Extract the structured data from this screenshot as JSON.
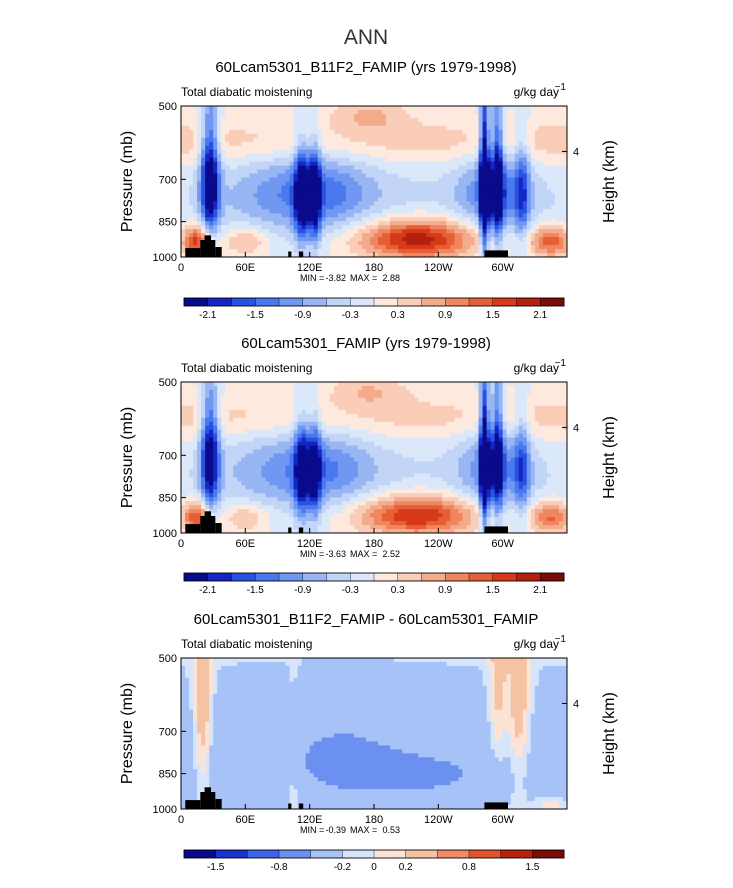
{
  "chart_data": {
    "type": "heatmap",
    "title": "ANN",
    "palette_full": [
      "#0a0b8c",
      "#1426c6",
      "#2a52e0",
      "#4a78ee",
      "#7097f1",
      "#98b6f4",
      "#c2d5f7",
      "#dbe8fa",
      "#fde9de",
      "#f9cdb8",
      "#f4ab8c",
      "#ef865f",
      "#e65f35",
      "#d63a1a",
      "#b3200f",
      "#7a0d06"
    ],
    "palette_diff": [
      "#0a0b8c",
      "#1a32cf",
      "#3b64e8",
      "#6b90f0",
      "#a7c2f6",
      "#d7e5fa",
      "#fbe4d6",
      "#f6c2a4",
      "#ef8c65",
      "#e2552c",
      "#b9200f",
      "#7a0d06"
    ],
    "panels": [
      {
        "title": "60Lcam5301_B11F2_FAMIP (yrs 1979-1998)",
        "left_label": "Total diabatic moistening",
        "units": "g/kg day",
        "units_exp": "−1",
        "ylabel": "Pressure (mb)",
        "y2label": "Height (km)",
        "x_ticks": [
          "0",
          "60E",
          "120E",
          "180",
          "120W",
          "60W"
        ],
        "y_ticks": [
          "500",
          "700",
          "850",
          "1000"
        ],
        "y2_ticks": [
          "4"
        ],
        "min_label": "MIN =",
        "min_value": "-3.82",
        "max_label": "MAX =",
        "max_value": "2.88",
        "colorbar_labels": [
          "-2.1",
          "-1.5",
          "-0.9",
          "-0.3",
          "0.3",
          "0.9",
          "1.5",
          "2.1"
        ],
        "scale": 1.0,
        "diff": false
      },
      {
        "title": "60Lcam5301_FAMIP (yrs 1979-1998)",
        "left_label": "Total diabatic moistening",
        "units": "g/kg day",
        "units_exp": "−1",
        "ylabel": "Pressure (mb)",
        "y2label": "Height (km)",
        "x_ticks": [
          "0",
          "60E",
          "120E",
          "180",
          "120W",
          "60W"
        ],
        "y_ticks": [
          "500",
          "700",
          "850",
          "1000"
        ],
        "y2_ticks": [
          "4"
        ],
        "min_label": "MIN =",
        "min_value": "-3.63",
        "max_label": "MAX =",
        "max_value": "2.52",
        "colorbar_labels": [
          "-2.1",
          "-1.5",
          "-0.9",
          "-0.3",
          "0.3",
          "0.9",
          "1.5",
          "2.1"
        ],
        "scale": 0.92,
        "diff": false
      },
      {
        "title": "60Lcam5301_B11F2_FAMIP - 60Lcam5301_FAMIP",
        "left_label": "Total diabatic moistening",
        "units": "g/kg day",
        "units_exp": "−1",
        "ylabel": "Pressure (mb)",
        "y2label": "Height (km)",
        "x_ticks": [
          "0",
          "60E",
          "120E",
          "180",
          "120W",
          "60W"
        ],
        "y_ticks": [
          "500",
          "700",
          "850",
          "1000"
        ],
        "y2_ticks": [
          "4"
        ],
        "min_label": "MIN =",
        "min_value": "-0.39",
        "max_label": "MAX =",
        "max_value": "0.53",
        "colorbar_labels": [
          "-1.5",
          "-0.8",
          "-0.2",
          "0",
          "0.2",
          "0.8",
          "1.5"
        ],
        "scale": 1.0,
        "diff": true
      }
    ]
  }
}
